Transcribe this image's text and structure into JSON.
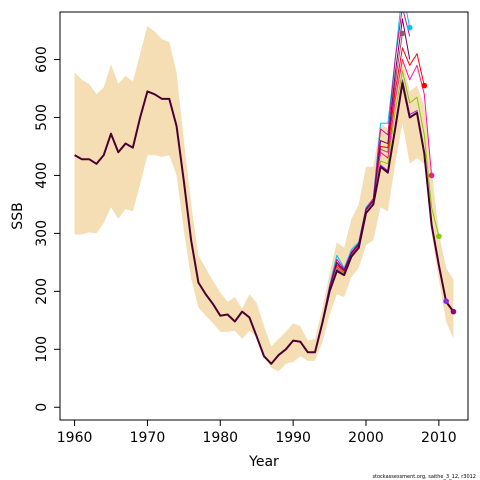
{
  "chart_data": {
    "type": "line",
    "xlabel": "Year",
    "ylabel": "SSB",
    "xlim": [
      1958,
      2014
    ],
    "ylim": [
      -22,
      682
    ],
    "xticks": [
      1960,
      1970,
      1980,
      1990,
      2000,
      2010
    ],
    "yticks": [
      0,
      100,
      200,
      300,
      400,
      500,
      600
    ],
    "grid": false,
    "credit": "stockassessment.org, saithe_3_12, r3012",
    "band_color": "#f5deb3",
    "band": {
      "x": [
        1960,
        1961,
        1962,
        1963,
        1964,
        1965,
        1966,
        1967,
        1968,
        1969,
        1970,
        1971,
        1972,
        1973,
        1974,
        1975,
        1976,
        1977,
        1978,
        1979,
        1980,
        1981,
        1982,
        1983,
        1984,
        1985,
        1986,
        1987,
        1988,
        1989,
        1990,
        1991,
        1992,
        1993,
        1994,
        1995,
        1996,
        1997,
        1998,
        1999,
        2000,
        2001,
        2002,
        2003,
        2004,
        2005,
        2006,
        2007,
        2008,
        2009,
        2010,
        2011,
        2012
      ],
      "upper": [
        578,
        565,
        558,
        540,
        552,
        592,
        558,
        572,
        562,
        610,
        658,
        648,
        635,
        630,
        578,
        460,
        350,
        262,
        240,
        218,
        198,
        182,
        190,
        170,
        195,
        180,
        140,
        105,
        118,
        130,
        145,
        140,
        115,
        118,
        170,
        230,
        285,
        275,
        325,
        350,
        415,
        415,
        490,
        480,
        580,
        600,
        545,
        555,
        520,
        410,
        300,
        240,
        220
      ],
      "lower": [
        298,
        298,
        302,
        300,
        318,
        345,
        325,
        342,
        338,
        385,
        435,
        435,
        432,
        435,
        400,
        305,
        222,
        172,
        158,
        145,
        130,
        130,
        132,
        118,
        132,
        122,
        90,
        68,
        62,
        75,
        78,
        88,
        80,
        80,
        112,
        160,
        195,
        190,
        225,
        240,
        280,
        288,
        345,
        338,
        420,
        490,
        420,
        430,
        420,
        300,
        220,
        148,
        118
      ]
    },
    "main_series": {
      "name": "",
      "color": "#4b0033",
      "x": [
        1960,
        1961,
        1962,
        1963,
        1964,
        1965,
        1966,
        1967,
        1968,
        1969,
        1970,
        1971,
        1972,
        1973,
        1974,
        1975,
        1976,
        1977,
        1978,
        1979,
        1980,
        1981,
        1982,
        1983,
        1984,
        1985,
        1986,
        1987,
        1988,
        1989,
        1990,
        1991,
        1992,
        1993,
        1994,
        1995,
        1996,
        1997,
        1998,
        1999,
        2000,
        2001,
        2002,
        2003,
        2004,
        2005,
        2006,
        2007,
        2008,
        2009,
        2010,
        2011,
        2012
      ],
      "y": [
        435,
        428,
        428,
        420,
        435,
        472,
        440,
        455,
        448,
        500,
        545,
        540,
        532,
        532,
        485,
        390,
        288,
        215,
        195,
        178,
        158,
        160,
        148,
        165,
        155,
        122,
        88,
        75,
        90,
        100,
        115,
        113,
        95,
        95,
        145,
        200,
        235,
        228,
        260,
        275,
        335,
        350,
        415,
        405,
        480,
        560,
        500,
        508,
        438,
        315,
        245,
        182,
        165
      ]
    },
    "retro_series": [
      {
        "name": "",
        "color": "#00c0ff",
        "x": [
          1993,
          1994,
          1995,
          1996,
          1997,
          1998,
          1999,
          2000,
          2001,
          2002,
          2003,
          2004,
          2005,
          2006
        ],
        "y": [
          96,
          148,
          210,
          262,
          240,
          272,
          285,
          345,
          360,
          490,
          490,
          600,
          720,
          655
        ],
        "end_point": {
          "x": 2006,
          "y": 655
        }
      },
      {
        "name": "",
        "color": "#a05070",
        "x": [
          1993,
          1994,
          1995,
          1996,
          1997,
          1998,
          1999,
          2000,
          2001,
          2002,
          2003,
          2004,
          2005
        ],
        "y": [
          96,
          145,
          205,
          248,
          235,
          265,
          280,
          340,
          355,
          445,
          440,
          560,
          645
        ],
        "end_point": {
          "x": 2005,
          "y": 645
        }
      },
      {
        "name": "",
        "color": "#ff0000",
        "x": [
          1993,
          1994,
          1995,
          1996,
          1997,
          1998,
          1999,
          2000,
          2001,
          2002,
          2003,
          2004,
          2005,
          2006,
          2007,
          2008
        ],
        "y": [
          96,
          146,
          205,
          245,
          235,
          265,
          282,
          342,
          360,
          450,
          448,
          545,
          620,
          590,
          610,
          555
        ],
        "end_point": {
          "x": 2008,
          "y": 555
        }
      },
      {
        "name": "",
        "color": "#ff1493",
        "x": [
          1993,
          1994,
          1995,
          1996,
          1997,
          1998,
          1999,
          2000,
          2001,
          2002,
          2003,
          2004,
          2005,
          2006,
          2007,
          2008,
          2009
        ],
        "y": [
          96,
          146,
          204,
          242,
          232,
          262,
          278,
          340,
          355,
          440,
          430,
          530,
          600,
          565,
          590,
          540,
          400
        ],
        "end_point": {
          "x": 2009,
          "y": 400
        }
      },
      {
        "name": "",
        "color": "#7fcc00",
        "x": [
          1993,
          1994,
          1995,
          1996,
          1997,
          1998,
          1999,
          2000,
          2001,
          2002,
          2003,
          2004,
          2005,
          2006,
          2007,
          2008,
          2009,
          2010
        ],
        "y": [
          96,
          146,
          202,
          240,
          230,
          262,
          276,
          336,
          350,
          425,
          420,
          510,
          580,
          525,
          535,
          470,
          345,
          295
        ],
        "end_point": {
          "x": 2010,
          "y": 295
        }
      },
      {
        "name": "",
        "color": "#8a2be2",
        "x": [
          1993,
          1994,
          1995,
          1996,
          1997,
          1998,
          1999,
          2000,
          2001,
          2002,
          2003,
          2004,
          2005,
          2006,
          2007,
          2008,
          2009,
          2010,
          2011
        ],
        "y": [
          96,
          145,
          200,
          238,
          228,
          260,
          275,
          335,
          350,
          418,
          408,
          485,
          565,
          505,
          512,
          440,
          318,
          248,
          183
        ],
        "end_point": {
          "x": 2011,
          "y": 183
        }
      },
      {
        "name": "",
        "color": "#c71585",
        "x": [
          1993,
          1994,
          1995,
          1996,
          1997,
          1998,
          1999,
          2000,
          2001,
          2002,
          2003,
          2004,
          2005,
          2006
        ],
        "y": [
          96,
          147,
          208,
          255,
          238,
          268,
          283,
          343,
          358,
          480,
          470,
          600,
          690,
          640
        ]
      },
      {
        "name": "",
        "color": "#6b006b",
        "x": [
          1993,
          1994,
          1995,
          1996,
          1997,
          1998,
          1999,
          2000,
          2001,
          2002,
          2003,
          2004,
          2005,
          2006
        ],
        "y": [
          96,
          146,
          206,
          250,
          236,
          266,
          281,
          341,
          356,
          460,
          455,
          575,
          670,
          600
        ]
      }
    ],
    "final_point": {
      "x": 2012,
      "y": 165,
      "color": "#8a008a"
    }
  }
}
